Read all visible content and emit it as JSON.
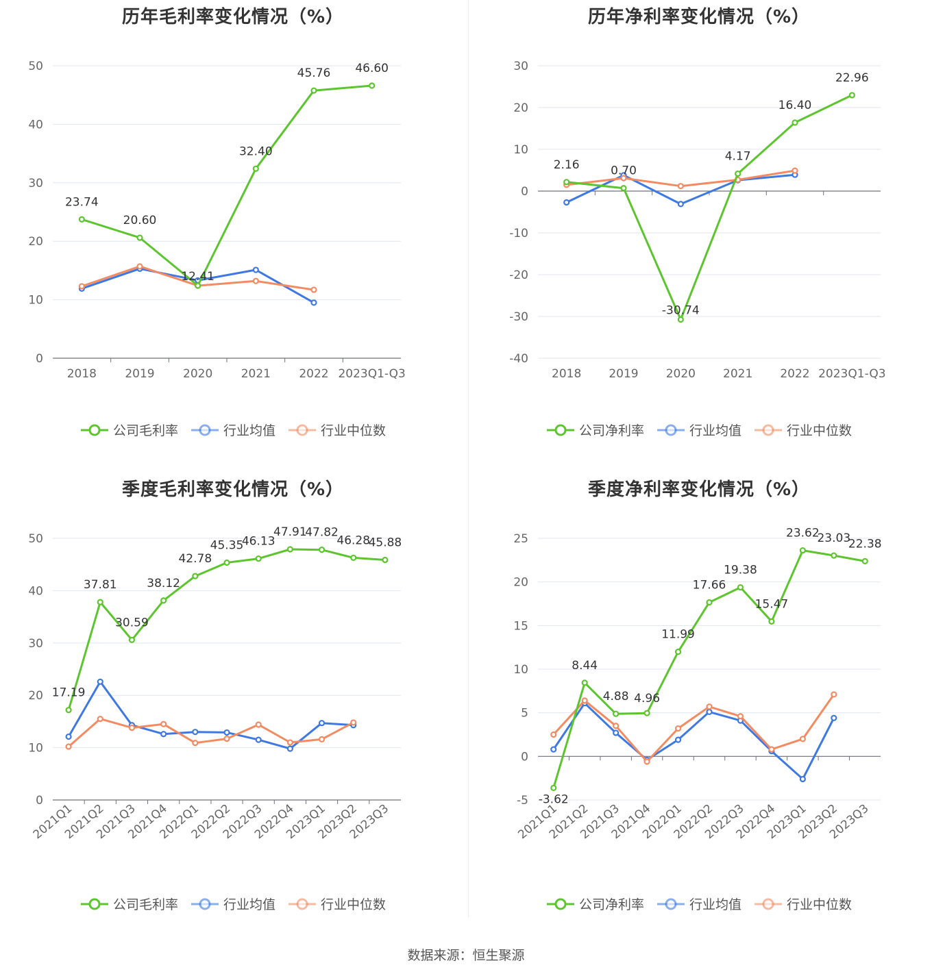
{
  "colors": {
    "company": "#5CC52E",
    "avg": "#3D78E3",
    "median": "#F28B62",
    "grid": "#E0E6F1",
    "axis": "#6E7079"
  },
  "source": "数据来源：恒生聚源",
  "chart_data": [
    {
      "id": "annual-gross",
      "type": "line",
      "title": "历年毛利率变化情况（%）",
      "categories": [
        "2018",
        "2019",
        "2020",
        "2021",
        "2022",
        "2023Q1-Q3"
      ],
      "ylim": [
        0,
        50
      ],
      "yticks": [
        0,
        10,
        20,
        30,
        40,
        50
      ],
      "series": [
        {
          "name": "公司毛利率",
          "role": "company",
          "values": [
            23.74,
            20.6,
            12.41,
            32.4,
            45.76,
            46.6
          ],
          "labels": [
            "23.74",
            "20.60",
            "12.41",
            "32.40",
            "45.76",
            "46.60"
          ]
        },
        {
          "name": "行业均值",
          "role": "avg",
          "values": [
            11.9,
            15.3,
            13.3,
            15.1,
            9.5,
            null
          ]
        },
        {
          "name": "行业中位数",
          "role": "median",
          "values": [
            12.3,
            15.7,
            12.4,
            13.2,
            11.7,
            null
          ]
        }
      ]
    },
    {
      "id": "annual-net",
      "type": "line",
      "title": "历年净利率变化情况（%）",
      "categories": [
        "2018",
        "2019",
        "2020",
        "2021",
        "2022",
        "2023Q1-Q3"
      ],
      "ylim": [
        -40,
        30
      ],
      "yticks": [
        -40,
        -30,
        -20,
        -10,
        0,
        10,
        20,
        30
      ],
      "series": [
        {
          "name": "公司净利率",
          "role": "company",
          "values": [
            2.16,
            0.7,
            -30.74,
            4.17,
            16.4,
            22.96
          ],
          "labels": [
            "2.16",
            "0.70",
            "-30.74",
            "4.17",
            "16.40",
            "22.96"
          ]
        },
        {
          "name": "行业均值",
          "role": "avg",
          "values": [
            -2.7,
            3.8,
            -3.1,
            2.6,
            3.9,
            null
          ]
        },
        {
          "name": "行业中位数",
          "role": "median",
          "values": [
            1.5,
            3.1,
            1.2,
            2.7,
            4.9,
            null
          ]
        }
      ]
    },
    {
      "id": "quarterly-gross",
      "type": "line",
      "title": "季度毛利率变化情况（%）",
      "categories": [
        "2021Q1",
        "2021Q2",
        "2021Q3",
        "2021Q4",
        "2022Q1",
        "2022Q2",
        "2022Q3",
        "2022Q4",
        "2023Q1",
        "2023Q2",
        "2023Q3"
      ],
      "ylim": [
        0,
        50
      ],
      "yticks": [
        0,
        10,
        20,
        30,
        40,
        50
      ],
      "series": [
        {
          "name": "公司毛利率",
          "role": "company",
          "values": [
            17.19,
            37.81,
            30.59,
            38.12,
            42.78,
            45.35,
            46.13,
            47.91,
            47.82,
            46.28,
            45.88
          ],
          "labels": [
            "17.19",
            "37.81",
            "30.59",
            "38.12",
            "42.78",
            "45.35",
            "46.13",
            "47.91",
            "47.82",
            "46.28",
            "45.88"
          ]
        },
        {
          "name": "行业均值",
          "role": "avg",
          "values": [
            12.1,
            22.6,
            14.3,
            12.6,
            13.0,
            12.9,
            11.5,
            9.8,
            14.7,
            14.3,
            null
          ]
        },
        {
          "name": "行业中位数",
          "role": "median",
          "values": [
            10.2,
            15.5,
            13.8,
            14.5,
            10.9,
            11.7,
            14.4,
            11.0,
            11.6,
            14.8,
            null
          ]
        }
      ]
    },
    {
      "id": "quarterly-net",
      "type": "line",
      "title": "季度净利率变化情况（%）",
      "categories": [
        "2021Q1",
        "2021Q2",
        "2021Q3",
        "2021Q4",
        "2022Q1",
        "2022Q2",
        "2022Q3",
        "2022Q4",
        "2023Q1",
        "2023Q2",
        "2023Q3"
      ],
      "ylim": [
        -5,
        25
      ],
      "yticks": [
        -5,
        0,
        5,
        10,
        15,
        20,
        25
      ],
      "series": [
        {
          "name": "公司净利率",
          "role": "company",
          "values": [
            -3.62,
            8.44,
            4.88,
            4.96,
            11.99,
            17.66,
            19.38,
            15.47,
            23.62,
            23.03,
            22.38
          ],
          "labels": [
            "-3.62",
            "8.44",
            "4.88",
            "4.96",
            "11.99",
            "17.66",
            "19.38",
            "15.47",
            "23.62",
            "23.03",
            "22.38"
          ]
        },
        {
          "name": "行业均值",
          "role": "avg",
          "values": [
            0.8,
            6.1,
            2.7,
            -0.4,
            1.9,
            5.1,
            4.1,
            0.6,
            -2.6,
            4.4,
            null
          ]
        },
        {
          "name": "行业中位数",
          "role": "median",
          "values": [
            2.5,
            6.4,
            3.5,
            -0.6,
            3.2,
            5.7,
            4.6,
            0.8,
            2.0,
            7.1,
            null
          ]
        }
      ]
    }
  ]
}
